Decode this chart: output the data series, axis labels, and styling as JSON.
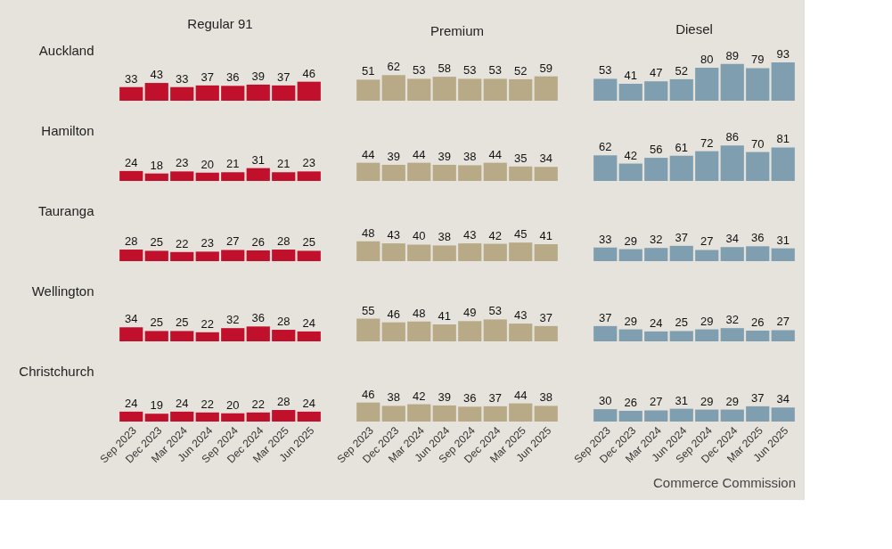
{
  "chart_data": [
    {
      "type": "bar",
      "title": "Regular 91",
      "ylabel": "Auckland",
      "categories": [
        null,
        null,
        null,
        null,
        null,
        null,
        null,
        null
      ],
      "values": [
        33,
        43,
        33,
        37,
        36,
        39,
        37,
        46
      ],
      "color": "#c0102c",
      "data_labels": true,
      "tick_labels": false
    },
    {
      "type": "bar",
      "title": "Premium",
      "categories": [
        null,
        null,
        null,
        null,
        null,
        null,
        null,
        null
      ],
      "values": [
        51,
        62,
        53,
        58,
        53,
        53,
        52,
        59
      ],
      "color": "#b8aa86",
      "data_labels": true,
      "tick_labels": false
    },
    {
      "type": "bar",
      "title": "Diesel",
      "categories": [
        null,
        null,
        null,
        null,
        null,
        null,
        null,
        null
      ],
      "values": [
        53,
        41,
        47,
        52,
        80,
        89,
        79,
        93
      ],
      "color": "#7f9fb0",
      "data_labels": true,
      "tick_labels": false
    },
    {
      "type": "bar",
      "ylabel": "Hamilton",
      "categories": [
        null,
        null,
        null,
        null,
        null,
        null,
        null,
        null
      ],
      "values": [
        24,
        18,
        23,
        20,
        21,
        31,
        21,
        23
      ],
      "color": "#c0102c",
      "data_labels": true,
      "tick_labels": false
    },
    {
      "type": "bar",
      "categories": [
        null,
        null,
        null,
        null,
        null,
        null,
        null,
        null
      ],
      "values": [
        44,
        39,
        44,
        39,
        38,
        44,
        35,
        34
      ],
      "color": "#b8aa86",
      "data_labels": true,
      "tick_labels": false
    },
    {
      "type": "bar",
      "categories": [
        null,
        null,
        null,
        null,
        null,
        null,
        null,
        null
      ],
      "values": [
        62,
        42,
        56,
        61,
        72,
        86,
        70,
        81
      ],
      "color": "#7f9fb0",
      "data_labels": true,
      "tick_labels": false
    },
    {
      "type": "bar",
      "ylabel": "Tauranga",
      "categories": [
        null,
        null,
        null,
        null,
        null,
        null,
        null,
        null
      ],
      "values": [
        28,
        25,
        22,
        23,
        27,
        26,
        28,
        25
      ],
      "color": "#c0102c",
      "data_labels": true,
      "tick_labels": false
    },
    {
      "type": "bar",
      "categories": [
        null,
        null,
        null,
        null,
        null,
        null,
        null,
        null
      ],
      "values": [
        48,
        43,
        40,
        38,
        43,
        42,
        45,
        41
      ],
      "color": "#b8aa86",
      "data_labels": true,
      "tick_labels": false
    },
    {
      "type": "bar",
      "categories": [
        null,
        null,
        null,
        null,
        null,
        null,
        null,
        null
      ],
      "values": [
        33,
        29,
        32,
        37,
        27,
        34,
        36,
        31
      ],
      "color": "#7f9fb0",
      "data_labels": true,
      "tick_labels": false
    },
    {
      "type": "bar",
      "ylabel": "Wellington",
      "categories": [
        null,
        null,
        null,
        null,
        null,
        null,
        null,
        null
      ],
      "values": [
        34,
        25,
        25,
        22,
        32,
        36,
        28,
        24
      ],
      "color": "#c0102c",
      "data_labels": true,
      "tick_labels": false
    },
    {
      "type": "bar",
      "categories": [
        null,
        null,
        null,
        null,
        null,
        null,
        null,
        null
      ],
      "values": [
        55,
        46,
        48,
        41,
        49,
        53,
        43,
        37
      ],
      "color": "#b8aa86",
      "data_labels": true,
      "tick_labels": false
    },
    {
      "type": "bar",
      "categories": [
        null,
        null,
        null,
        null,
        null,
        null,
        null,
        null
      ],
      "values": [
        37,
        29,
        24,
        25,
        29,
        32,
        26,
        27
      ],
      "color": "#7f9fb0",
      "data_labels": true,
      "tick_labels": false
    },
    {
      "type": "bar",
      "ylabel": "Christchurch",
      "categories": [
        "Sep 2023",
        "Dec 2023",
        "Mar 2024",
        "Jun 2024",
        "Sep 2024",
        "Dec 2024",
        "Mar 2025",
        "Jun 2025"
      ],
      "values": [
        24,
        19,
        24,
        22,
        20,
        22,
        28,
        24
      ],
      "color": "#c0102c",
      "data_labels": true,
      "tick_labels": "x"
    },
    {
      "type": "bar",
      "categories": [
        "Sep 2023",
        "Dec 2023",
        "Mar 2024",
        "Jun 2024",
        "Sep 2024",
        "Dec 2024",
        "Mar 2025",
        "Jun 2025"
      ],
      "values": [
        46,
        38,
        42,
        39,
        36,
        37,
        44,
        38
      ],
      "color": "#b8aa86",
      "data_labels": true,
      "tick_labels": "x"
    },
    {
      "type": "bar",
      "categories": [
        "Sep 2023",
        "Dec 2023",
        "Mar 2024",
        "Jun 2024",
        "Sep 2024",
        "Dec 2024",
        "Mar 2025",
        "Jun 2025"
      ],
      "values": [
        30,
        26,
        27,
        31,
        29,
        29,
        37,
        34
      ],
      "color": "#7f9fb0",
      "data_labels": true,
      "tick_labels": "x",
      "annotations": [
        "Commerce Commission"
      ]
    }
  ]
}
